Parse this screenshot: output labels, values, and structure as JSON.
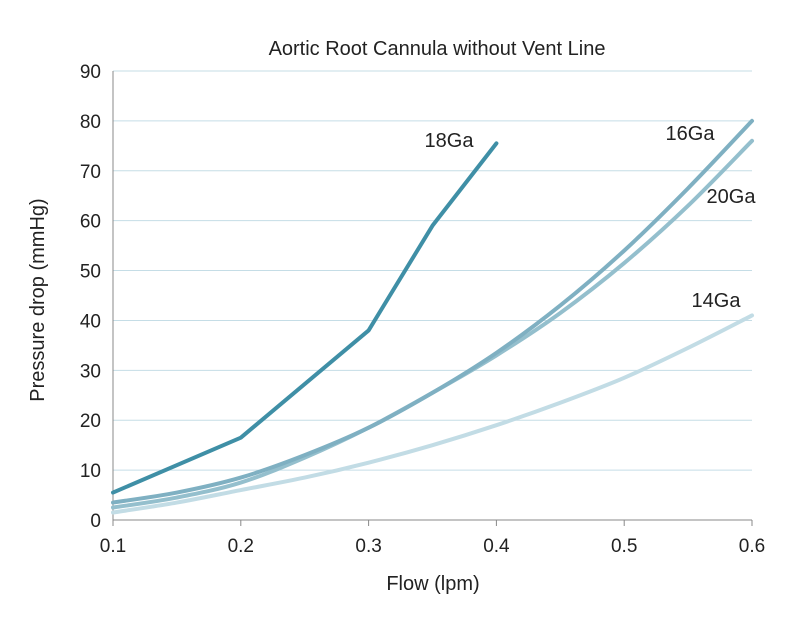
{
  "chart_data": {
    "type": "line",
    "title": "Aortic Root Cannula without Vent Line",
    "xlabel": "Flow (lpm)",
    "ylabel": "Pressure drop (mmHg)",
    "xlim": [
      0.1,
      0.6
    ],
    "ylim": [
      0,
      90
    ],
    "xticks": [
      "0.1",
      "0.2",
      "0.3",
      "0.4",
      "0.5",
      "0.6"
    ],
    "yticks": [
      "0",
      "10",
      "20",
      "30",
      "40",
      "50",
      "60",
      "70",
      "80",
      "90"
    ],
    "grid": "horizontal",
    "legend": "labels on lines",
    "series": [
      {
        "name": "18Ga",
        "color": "#3f8fa6",
        "x": [
          0.1,
          0.2,
          0.3,
          0.35,
          0.4
        ],
        "y": [
          5.5,
          16.5,
          38,
          59,
          75.5
        ]
      },
      {
        "name": "16Ga",
        "color": "#7fb0c2",
        "x": [
          0.1,
          0.15,
          0.2,
          0.25,
          0.3,
          0.35,
          0.4,
          0.45,
          0.5,
          0.55,
          0.6
        ],
        "y": [
          3.5,
          5.5,
          8.5,
          13,
          18.5,
          25.5,
          33.5,
          43,
          54,
          66.5,
          80
        ]
      },
      {
        "name": "20Ga",
        "color": "#94bfcd",
        "x": [
          0.1,
          0.15,
          0.2,
          0.25,
          0.3,
          0.35,
          0.4,
          0.45,
          0.5,
          0.55,
          0.6
        ],
        "y": [
          2.5,
          4.5,
          7.5,
          12.5,
          18.5,
          25.5,
          33,
          41.5,
          51.5,
          63,
          76
        ]
      },
      {
        "name": "14Ga",
        "color": "#c2dce5",
        "x": [
          0.1,
          0.15,
          0.2,
          0.25,
          0.3,
          0.35,
          0.4,
          0.45,
          0.5,
          0.55,
          0.6
        ],
        "y": [
          1.5,
          3.5,
          6,
          8.5,
          11.5,
          15,
          19,
          23.5,
          28.5,
          34.5,
          41
        ]
      }
    ]
  }
}
